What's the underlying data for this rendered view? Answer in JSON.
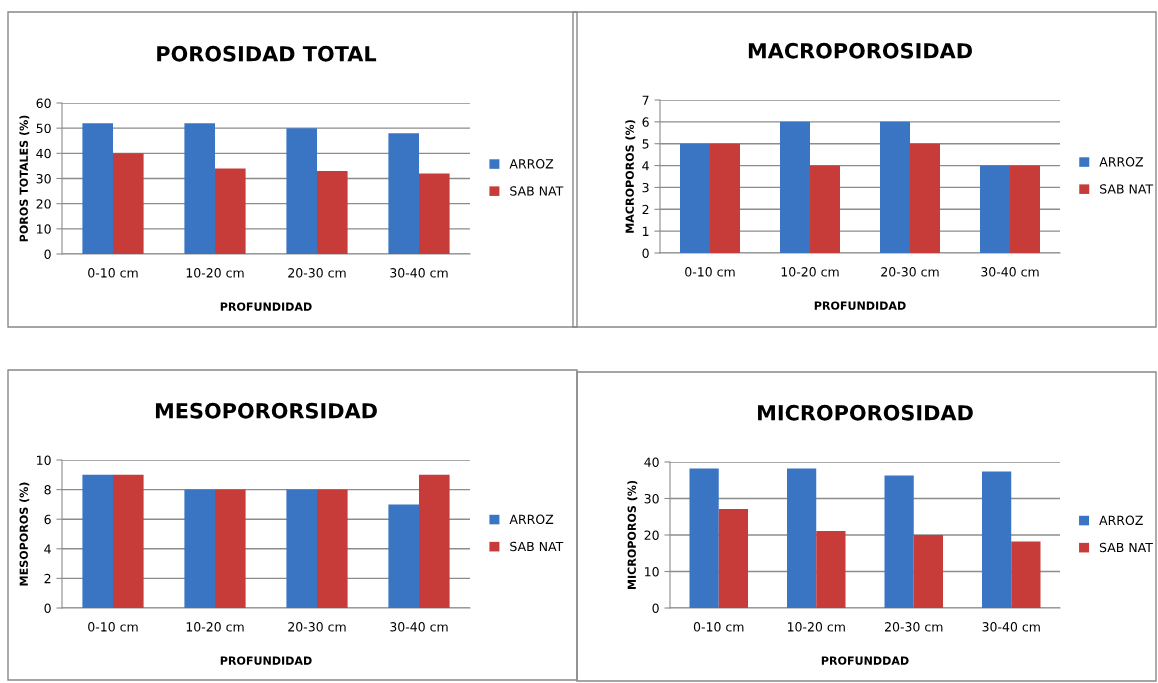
{
  "chart_data": [
    {
      "type": "bar",
      "title": "POROSIDAD TOTAL",
      "xlabel": "PROFUNDIDAD",
      "ylabel": "POROS TOTALES (%)",
      "categories": [
        "0-10 cm",
        "10-20 cm",
        "20-30 cm",
        "30-40 cm"
      ],
      "series": [
        {
          "name": "ARROZ",
          "color": "#3a75c4",
          "values": [
            52,
            52,
            50,
            48
          ]
        },
        {
          "name": "SAB NAT",
          "color": "#c73c38",
          "values": [
            40,
            34,
            33,
            32
          ]
        }
      ],
      "ylim": [
        0,
        60
      ],
      "yticks": [
        0,
        10,
        20,
        30,
        40,
        50,
        60
      ],
      "grid": "y",
      "legend": "right"
    },
    {
      "type": "bar",
      "title": "MACROPOROSIDAD",
      "xlabel": "PROFUNDIDAD",
      "ylabel": "MACROPOROS (%)",
      "categories": [
        "0-10 cm",
        "10-20 cm",
        "20-30 cm",
        "30-40 cm"
      ],
      "series": [
        {
          "name": "ARROZ",
          "color": "#3a75c4",
          "values": [
            5,
            6,
            6,
            4
          ]
        },
        {
          "name": "SAB NAT",
          "color": "#c73c38",
          "values": [
            5,
            4,
            5,
            4
          ]
        }
      ],
      "ylim": [
        0,
        7
      ],
      "yticks": [
        0,
        1,
        2,
        3,
        4,
        5,
        6,
        7
      ],
      "grid": "y",
      "legend": "right"
    },
    {
      "type": "bar",
      "title": "MESOPORORSIDAD",
      "xlabel": "PROFUNDIDAD",
      "ylabel": "MESOPOROS (%)",
      "categories": [
        "0-10 cm",
        "10-20 cm",
        "20-30 cm",
        "30-40 cm"
      ],
      "series": [
        {
          "name": "ARROZ",
          "color": "#3a75c4",
          "values": [
            9,
            8,
            8,
            7
          ]
        },
        {
          "name": "SAB NAT",
          "color": "#c73c38",
          "values": [
            9,
            8,
            8,
            9
          ]
        }
      ],
      "ylim": [
        0,
        10
      ],
      "yticks": [
        0,
        2,
        4,
        6,
        8,
        10
      ],
      "grid": "y",
      "legend": "right"
    },
    {
      "type": "bar",
      "title": "MICROPOROSIDAD",
      "xlabel": "PROFUNDDAD",
      "ylabel": "MICROPOROS (%)",
      "categories": [
        "0-10 cm",
        "10-20 cm",
        "20-30 cm",
        "30-40 cm"
      ],
      "series": [
        {
          "name": "ARROZ",
          "color": "#3a75c4",
          "values": [
            38.2,
            38.2,
            36.3,
            37.4
          ]
        },
        {
          "name": "SAB NAT",
          "color": "#c73c38",
          "values": [
            27.1,
            21.1,
            20.0,
            18.2
          ]
        }
      ],
      "ylim": [
        0,
        40
      ],
      "yticks": [
        0,
        10,
        20,
        30,
        40
      ],
      "grid": "y",
      "legend": "right"
    }
  ]
}
